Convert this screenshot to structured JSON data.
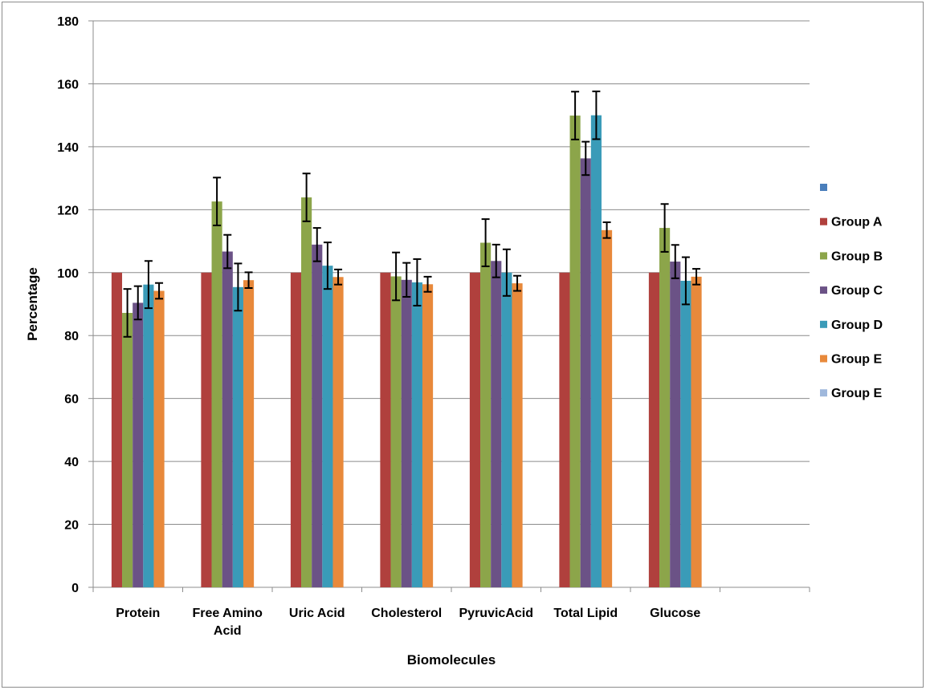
{
  "chart_data": {
    "type": "bar",
    "title": "",
    "xlabel": "Biomolecules",
    "ylabel": "Percentage",
    "ylim": [
      0,
      180
    ],
    "yticks": [
      0,
      20,
      40,
      60,
      80,
      100,
      120,
      140,
      160,
      180
    ],
    "grid": "horizontal",
    "legend_position": "right",
    "categories": [
      "Protein",
      "Free Amino Acid",
      "Uric Acid",
      "Cholesterol",
      "PyruvicAcid",
      "Total Lipid",
      "Glucose",
      ""
    ],
    "category_lines": [
      [
        "Protein"
      ],
      [
        "Free Amino",
        "Acid"
      ],
      [
        "Uric Acid"
      ],
      [
        "Cholesterol"
      ],
      [
        "PyruvicAcid"
      ],
      [
        "Total Lipid"
      ],
      [
        "Glucose"
      ],
      [
        ""
      ]
    ],
    "series": [
      {
        "name": "",
        "color": "#4a7ebb",
        "values": [
          null,
          null,
          null,
          null,
          null,
          null,
          null,
          null
        ],
        "errors": [
          null,
          null,
          null,
          null,
          null,
          null,
          null,
          null
        ]
      },
      {
        "name": "Group A",
        "color": "#b0403d",
        "values": [
          100,
          100,
          100,
          100,
          100,
          100,
          100,
          null
        ],
        "errors": [
          null,
          null,
          null,
          null,
          null,
          null,
          null,
          null
        ]
      },
      {
        "name": "Group B",
        "color": "#8ca54a",
        "values": [
          87.2,
          122.6,
          123.9,
          98.8,
          109.5,
          149.9,
          114.2,
          null
        ],
        "errors": [
          7.6,
          7.6,
          7.6,
          7.6,
          7.5,
          7.6,
          7.6,
          null
        ]
      },
      {
        "name": "Group C",
        "color": "#6b5286",
        "values": [
          90.4,
          106.7,
          108.9,
          97.7,
          103.7,
          136.3,
          103.5,
          null
        ],
        "errors": [
          5.3,
          5.3,
          5.3,
          5.4,
          5.2,
          5.3,
          5.3,
          null
        ]
      },
      {
        "name": "Group D",
        "color": "#3a9bb8",
        "values": [
          96.2,
          95.4,
          102.2,
          96.9,
          100,
          150,
          97.4,
          null
        ],
        "errors": [
          7.5,
          7.5,
          7.4,
          7.4,
          7.4,
          7.6,
          7.5,
          null
        ]
      },
      {
        "name": "Group E",
        "color": "#e8893b",
        "values": [
          94.2,
          97.6,
          98.6,
          96.3,
          96.6,
          113.5,
          98.7,
          null
        ],
        "errors": [
          2.5,
          2.5,
          2.4,
          2.4,
          2.4,
          2.5,
          2.5,
          null
        ]
      },
      {
        "name": "Group E",
        "color": "#9fb8dc",
        "values": [
          null,
          null,
          null,
          null,
          null,
          null,
          null,
          null
        ],
        "errors": [
          null,
          null,
          null,
          null,
          null,
          null,
          null,
          null
        ]
      }
    ]
  }
}
